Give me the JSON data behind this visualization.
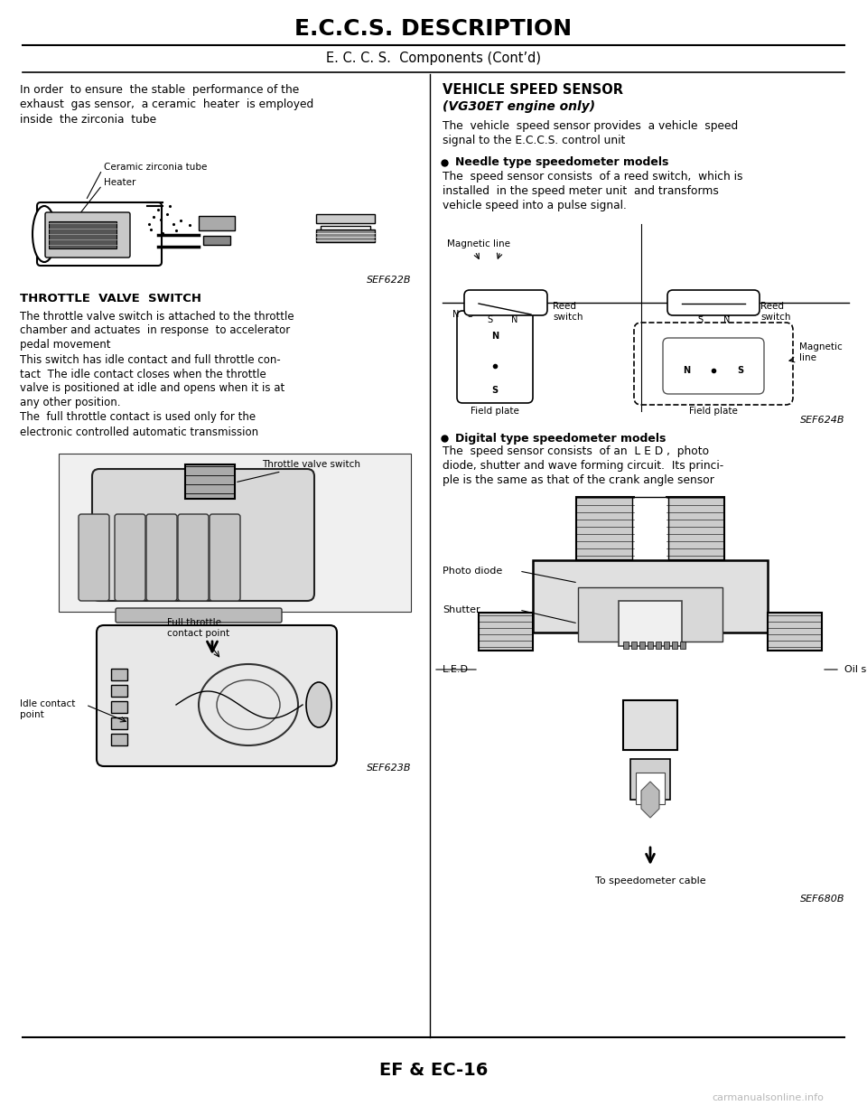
{
  "title": "E.C.C.S. DESCRIPTION",
  "subtitle": "E. C. C. S.  Components (Cont’d)",
  "footer": "EF & EC-16",
  "watermark": "carmanualsonline.info",
  "bg_color": "#ffffff",
  "left_intro": [
    "In order  to ensure  the stable  performance of the",
    "exhaust  gas sensor,  a ceramic  heater  is employed",
    "inside  the zirconia  tube"
  ],
  "lbl_ceramic": "Ceramic zirconia tube",
  "lbl_heater": "Heater",
  "code1": "SEF622B",
  "tvs_title": "THROTTLE  VALVE  SWITCH",
  "tvs_body": [
    "The throttle valve switch is attached to the throttle",
    "chamber and actuates  in response  to accelerator",
    "pedal movement",
    "This switch has idle contact and full throttle con-",
    "tact  The idle contact closes when the throttle",
    "valve is positioned at idle and opens when it is at",
    "any other position.",
    "The  full throttle contact is used only for the",
    "electronic controlled automatic transmission"
  ],
  "lbl_tvs": "Throttle valve switch",
  "lbl_idle": "Idle contact\npoint",
  "lbl_full": "Full throttle\ncontact point",
  "code2": "SEF623B",
  "vss_title": "VEHICLE SPEED SENSOR",
  "vss_subtitle": "(VG30ET engine only)",
  "vss_body": [
    "The  vehicle  speed sensor provides  a vehicle  speed",
    "signal to the E.C.C.S. control unit"
  ],
  "bullet1": "Needle type speedometer models",
  "bullet1_body": [
    "The  speed sensor consists  of a reed switch,  which is",
    "installed  in the speed meter unit  and transforms",
    "vehicle speed into a pulse signal."
  ],
  "code3": "SEF624B",
  "bullet2": "Digital type speedometer models",
  "bullet2_body": [
    "The  speed sensor consists  of an  L E D ,  photo",
    "diode, shutter and wave forming circuit.  Its princi-",
    "ple is the same as that of the crank angle sensor"
  ],
  "lbl_photodiode": "Photo diode",
  "lbl_shutter": "Shutter",
  "lbl_led": "L.E.D",
  "lbl_oilseal": "Oil seal",
  "lbl_cable": "To speedometer cable",
  "code4": "SEF680B"
}
